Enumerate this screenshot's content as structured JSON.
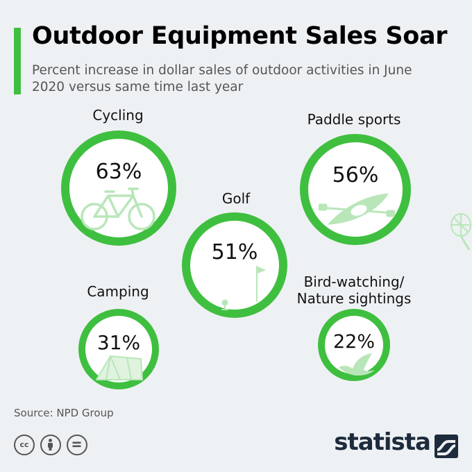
{
  "header": {
    "title": "Outdoor Equipment Sales Soar",
    "subtitle": "Percent increase in dollar sales of outdoor activities in June 2020 versus same time last year"
  },
  "chart_data": {
    "type": "bubble",
    "unit": "%",
    "categories": [
      "Cycling",
      "Paddle sports",
      "Golf",
      "Camping",
      "Bird-watching/\nNature sightings"
    ],
    "values": [
      63,
      56,
      51,
      31,
      22
    ],
    "value_labels": [
      "63%",
      "56%",
      "51%",
      "31%",
      "22%"
    ],
    "icons": [
      "bicycle-icon",
      "kayak-icon",
      "golf-flag-icon",
      "tent-icon",
      "bird-icon"
    ],
    "colors": {
      "ring": "#3fbf3f",
      "icon": "#b9e6b9",
      "background": "#eef1f4"
    }
  },
  "footer": {
    "source": "Source: NPD Group",
    "license_icons": [
      "cc-icon",
      "by-icon",
      "nd-icon"
    ],
    "cc_label": "cc",
    "brand": "statista"
  }
}
